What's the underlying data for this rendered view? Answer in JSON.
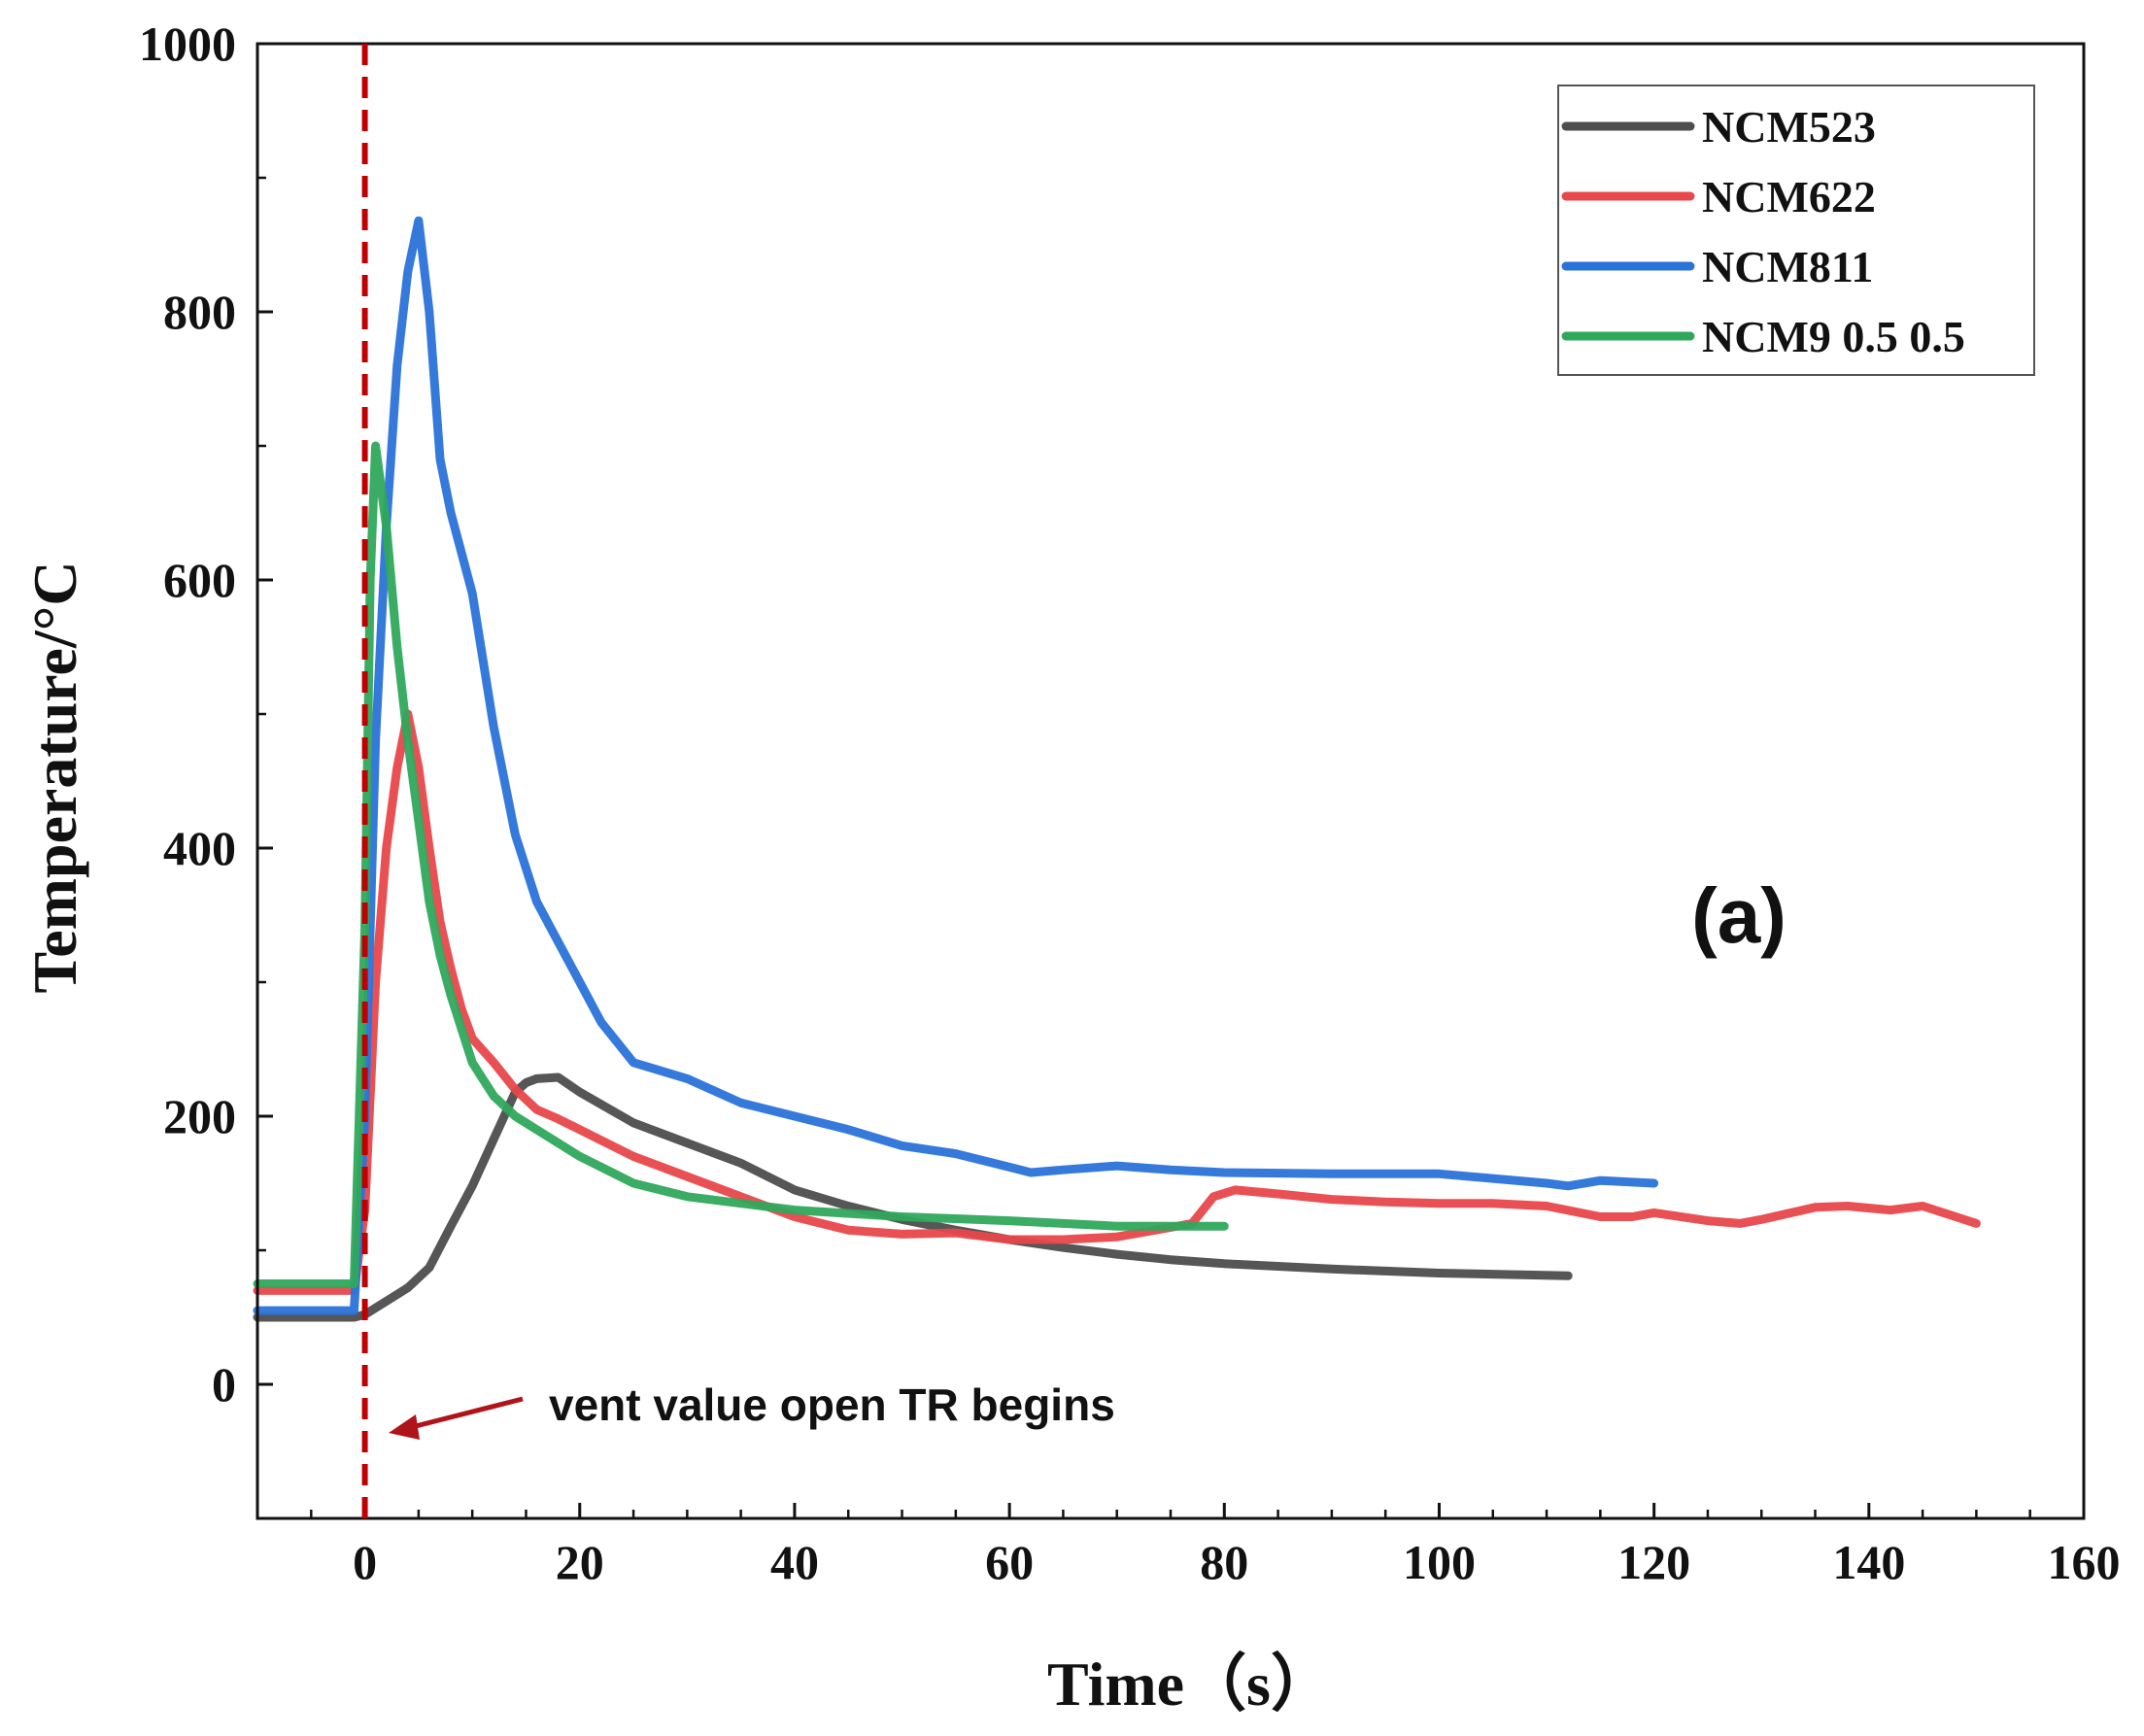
{
  "chart_data": {
    "type": "line",
    "title": "",
    "xlabel": "Time（s）",
    "ylabel": "Temperature/°C",
    "xlim": [
      -10,
      160
    ],
    "ylim": [
      -100,
      1000
    ],
    "xticks": [
      0,
      20,
      40,
      60,
      80,
      100,
      120,
      140,
      160
    ],
    "yticks": [
      0,
      200,
      400,
      600,
      800,
      1000
    ],
    "legend_position": "top-right",
    "panel_label": "(a)",
    "annotation": {
      "text": "vent value open TR begins",
      "marker_x": 0
    },
    "colors": {
      "NCM523": "#4d4d4d",
      "NCM622": "#e8474b",
      "NCM811": "#2a73d9",
      "NCM9 0.5 0.5": "#2fa85c",
      "marker": "#c00000"
    },
    "series": [
      {
        "name": "NCM523",
        "x": [
          -10,
          -1,
          0,
          2,
          4,
          6,
          8,
          10,
          12,
          14,
          15,
          16,
          18,
          20,
          25,
          30,
          35,
          40,
          45,
          50,
          55,
          60,
          65,
          70,
          75,
          80,
          90,
          100,
          112
        ],
        "y": [
          50,
          50,
          52,
          62,
          72,
          87,
          118,
          148,
          183,
          218,
          225,
          228,
          229,
          218,
          195,
          180,
          165,
          145,
          133,
          123,
          115,
          108,
          102,
          97,
          93,
          90,
          86,
          83,
          81
        ]
      },
      {
        "name": "NCM622",
        "x": [
          -10,
          -2,
          -1,
          0,
          1,
          2,
          3,
          4,
          5,
          6,
          7,
          8,
          9,
          10,
          12,
          14,
          16,
          18,
          20,
          25,
          30,
          35,
          40,
          45,
          50,
          55,
          60,
          65,
          70,
          75,
          77,
          79,
          81,
          85,
          90,
          95,
          100,
          105,
          110,
          115,
          118,
          120,
          125,
          128,
          130,
          135,
          138,
          142,
          145,
          150
        ],
        "y": [
          70,
          70,
          70,
          130,
          300,
          400,
          460,
          500,
          460,
          400,
          345,
          310,
          280,
          258,
          240,
          220,
          205,
          198,
          190,
          170,
          155,
          140,
          125,
          115,
          112,
          113,
          108,
          108,
          110,
          117,
          120,
          140,
          145,
          142,
          138,
          136,
          135,
          135,
          133,
          125,
          125,
          128,
          122,
          120,
          123,
          132,
          133,
          130,
          133,
          120
        ]
      },
      {
        "name": "NCM811",
        "x": [
          -10,
          -1,
          0,
          1,
          2,
          3,
          4,
          5,
          6,
          7,
          8,
          10,
          12,
          14,
          16,
          18,
          20,
          22,
          25,
          30,
          35,
          40,
          45,
          50,
          55,
          60,
          62,
          65,
          70,
          75,
          80,
          90,
          100,
          110,
          112,
          115,
          120
        ],
        "y": [
          55,
          55,
          200,
          480,
          640,
          760,
          830,
          868,
          800,
          690,
          650,
          590,
          490,
          410,
          360,
          330,
          300,
          270,
          240,
          228,
          210,
          200,
          190,
          178,
          172,
          162,
          158,
          160,
          163,
          160,
          158,
          157,
          157,
          150,
          148,
          152,
          150
        ]
      },
      {
        "name": "NCM9 0.5 0.5",
        "x": [
          -10,
          -2,
          -1,
          0,
          0.5,
          1,
          2,
          3,
          4,
          5,
          6,
          7,
          8,
          10,
          12,
          14,
          16,
          20,
          25,
          30,
          40,
          50,
          60,
          70,
          80
        ],
        "y": [
          75,
          75,
          75,
          340,
          600,
          700,
          640,
          550,
          480,
          420,
          360,
          320,
          290,
          240,
          215,
          200,
          190,
          170,
          150,
          140,
          130,
          125,
          122,
          118,
          118
        ]
      }
    ]
  }
}
